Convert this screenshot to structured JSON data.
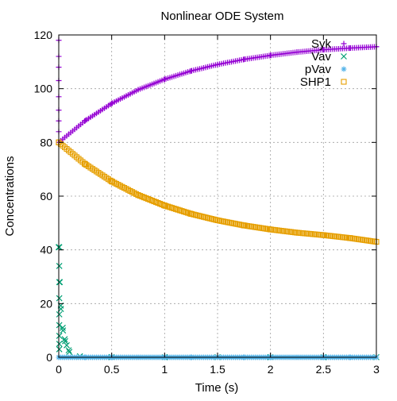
{
  "chart_data": {
    "type": "scatter",
    "title": "Nonlinear ODE System",
    "xlabel": "Time (s)",
    "ylabel": "Concentrations",
    "xlim": [
      0,
      3
    ],
    "ylim": [
      0,
      120
    ],
    "xticks": [
      0,
      0.5,
      1,
      1.5,
      2,
      2.5,
      3
    ],
    "xtick_labels": [
      "0",
      "0.5",
      "1",
      "1.5",
      "2",
      "2.5",
      "3"
    ],
    "yticks": [
      0,
      20,
      40,
      60,
      80,
      100,
      120
    ],
    "ytick_labels": [
      "0",
      "20",
      "40",
      "60",
      "80",
      "100",
      "120"
    ],
    "grid": true,
    "legend_position": "top-right",
    "series": [
      {
        "name": "Syk",
        "marker": "plus",
        "color": "#9400d3",
        "x": [
          0,
          0.25,
          0.5,
          0.75,
          1.0,
          1.25,
          1.5,
          1.75,
          2.0,
          2.25,
          2.5,
          2.75,
          3.0
        ],
        "y": [
          80,
          88.1,
          94.5,
          99.6,
          103.5,
          106.6,
          109.0,
          110.9,
          112.4,
          113.6,
          114.5,
          115.1,
          115.6
        ]
      },
      {
        "name": "Vav",
        "marker": "cross",
        "color": "#009e73",
        "x": [
          0,
          0.01,
          0.02,
          0.04,
          0.06,
          0.1,
          0.2,
          0.5,
          1.0,
          1.5,
          2.0,
          2.5,
          3.0
        ],
        "y": [
          41,
          28,
          18,
          10,
          6,
          2,
          0.4,
          0.1,
          0.05,
          0.05,
          0.05,
          0.05,
          0.05
        ]
      },
      {
        "name": "pVav",
        "marker": "star",
        "color": "#56b4e9",
        "x": [
          0,
          0.25,
          0.5,
          0.75,
          1.0,
          1.25,
          1.5,
          1.75,
          2.0,
          2.25,
          2.5,
          2.75,
          3.0
        ],
        "y": [
          0,
          0,
          0,
          0,
          0,
          0,
          0,
          0,
          0,
          0,
          0,
          0,
          0
        ]
      },
      {
        "name": "SHP1",
        "marker": "square",
        "color": "#e69f00",
        "x": [
          0,
          0.25,
          0.5,
          0.75,
          1.0,
          1.25,
          1.5,
          1.75,
          2.0,
          2.25,
          2.5,
          2.75,
          3.0
        ],
        "y": [
          80,
          71.9,
          65.5,
          60.4,
          56.5,
          53.4,
          51.0,
          49.1,
          47.6,
          46.4,
          45.5,
          44.4,
          43.0
        ]
      }
    ]
  }
}
